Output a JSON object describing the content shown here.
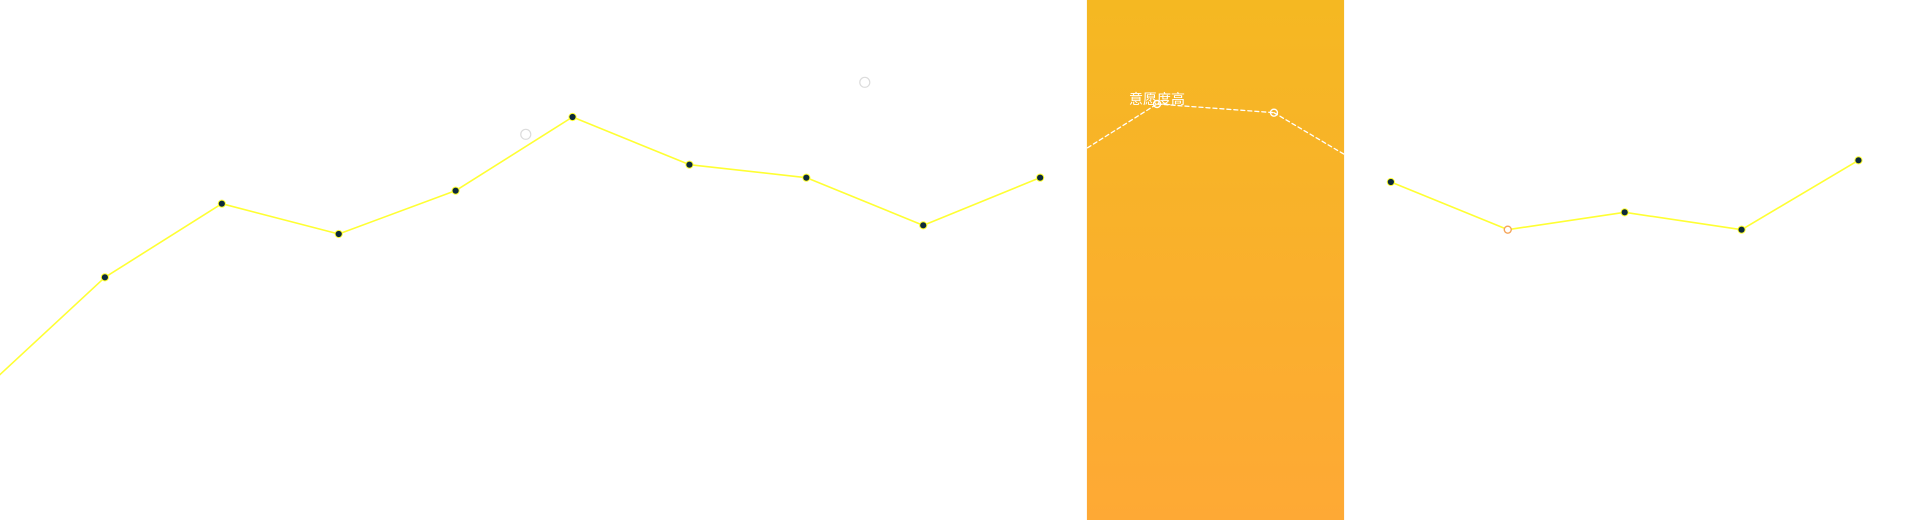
{
  "chart_data": {
    "type": "line",
    "title": "",
    "xlabel": "",
    "ylabel": "",
    "series": [
      {
        "values": [
          {
            "x": 0,
            "y": 31
          },
          {
            "x": 1,
            "y": 56
          },
          {
            "x": 2,
            "y": 73
          },
          {
            "x": 3,
            "y": 66
          },
          {
            "x": 4,
            "y": 76
          },
          {
            "x": 5,
            "y": 93
          },
          {
            "x": 6,
            "y": 82
          },
          {
            "x": 7,
            "y": 79
          },
          {
            "x": 8,
            "y": 68
          },
          {
            "x": 9,
            "y": 79
          },
          {
            "x": 10,
            "y": 96
          },
          {
            "x": 11,
            "y": 94
          },
          {
            "x": 12,
            "y": 78
          },
          {
            "x": 13,
            "y": 67
          },
          {
            "x": 14,
            "y": 71
          },
          {
            "x": 15,
            "y": 67
          },
          {
            "x": 16,
            "y": 83
          }
        ]
      }
    ],
    "highlight": {
      "label": "意愿度高",
      "x_from": 9.4,
      "x_to": 11.6
    },
    "faint_markers": [
      {
        "x": 4.6,
        "y": 89
      },
      {
        "x": 7.5,
        "y": 101
      }
    ],
    "ylim": [
      0,
      120
    ],
    "xlim": [
      0,
      16.8
    ],
    "grid": false,
    "legend": "none",
    "colors": {
      "line": "#ffff33",
      "point_fill": "#0d2a3a",
      "highlight_top": "#f5b822",
      "highlight_bottom": "#fea935",
      "highlight_line": "#ffffff",
      "accent_point": "#f5a55a",
      "faint_marker": "#dcdcdc"
    }
  }
}
